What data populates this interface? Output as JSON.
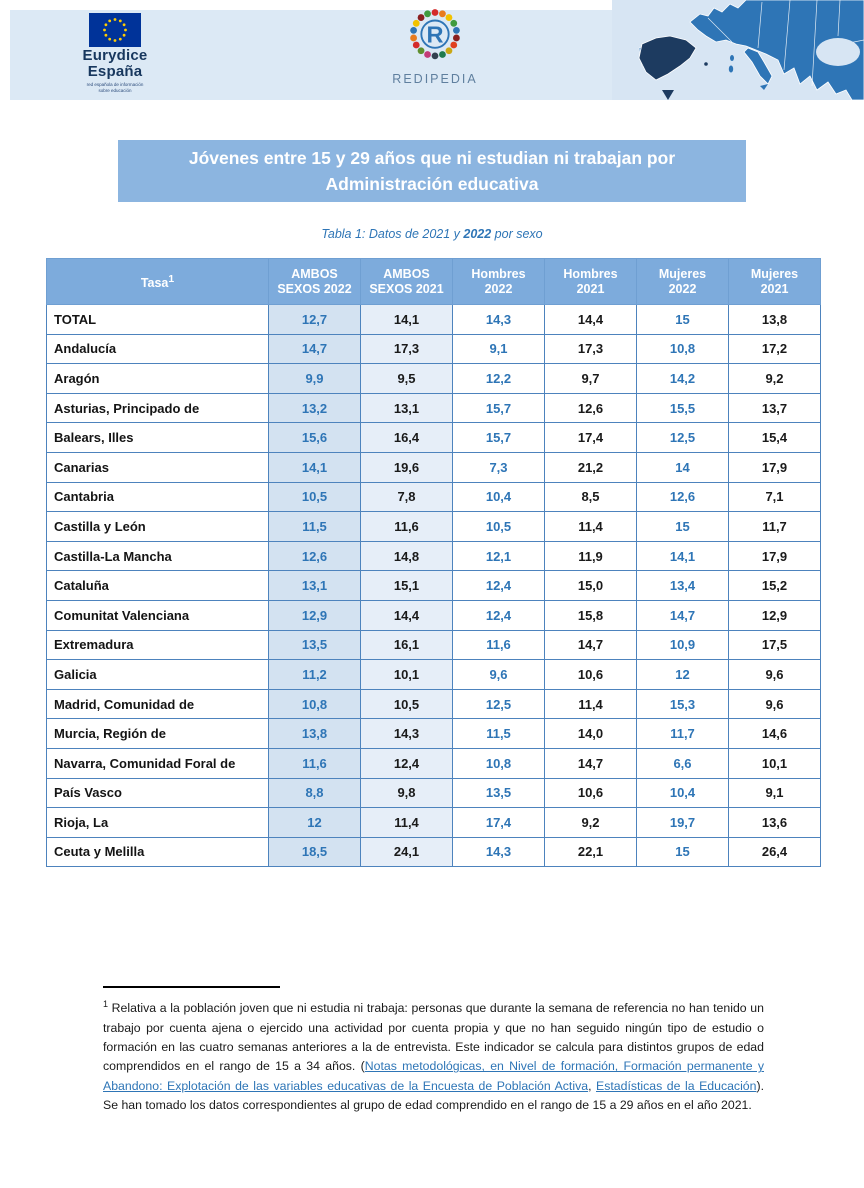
{
  "header": {
    "eurydice": {
      "line1": "Eurydice",
      "line2": "España",
      "sub_line1": "red española de información",
      "sub_line2": "sobre educación"
    },
    "redipedia": {
      "letter": "R",
      "label": "REDIPEDIA"
    }
  },
  "title": {
    "line1": "Jóvenes entre 15 y 29 años que ni estudian ni trabajan por",
    "line2": "Administración educativa"
  },
  "caption": {
    "prefix": "Tabla 1: Datos de 2021 y ",
    "year": "2022",
    "suffix": " por sexo"
  },
  "table": {
    "headers": [
      {
        "line1": "Tasa",
        "sup": "1",
        "line2": ""
      },
      {
        "line1": "AMBOS",
        "line2": "SEXOS 2022"
      },
      {
        "line1": "AMBOS",
        "line2": "SEXOS 2021"
      },
      {
        "line1": "Hombres",
        "line2": "2022"
      },
      {
        "line1": "Hombres",
        "line2": "2021"
      },
      {
        "line1": "Mujeres",
        "line2": "2022"
      },
      {
        "line1": "Mujeres",
        "line2": "2021"
      }
    ],
    "rows": [
      {
        "region": "TOTAL",
        "values": [
          "12,7",
          "14,1",
          "14,3",
          "14,4",
          "15",
          "13,8"
        ]
      },
      {
        "region": "Andalucía",
        "values": [
          "14,7",
          "17,3",
          "9,1",
          "17,3",
          "10,8",
          "17,2"
        ]
      },
      {
        "region": "Aragón",
        "values": [
          "9,9",
          "9,5",
          "12,2",
          "9,7",
          "14,2",
          "9,2"
        ]
      },
      {
        "region": "Asturias, Principado de",
        "values": [
          "13,2",
          "13,1",
          "15,7",
          "12,6",
          "15,5",
          "13,7"
        ]
      },
      {
        "region": "Balears, Illes",
        "values": [
          "15,6",
          "16,4",
          "15,7",
          "17,4",
          "12,5",
          "15,4"
        ]
      },
      {
        "region": "Canarias",
        "values": [
          "14,1",
          "19,6",
          "7,3",
          "21,2",
          "14",
          "17,9"
        ]
      },
      {
        "region": "Cantabria",
        "values": [
          "10,5",
          "7,8",
          "10,4",
          "8,5",
          "12,6",
          "7,1"
        ]
      },
      {
        "region": "Castilla y León",
        "values": [
          "11,5",
          "11,6",
          "10,5",
          "11,4",
          "15",
          "11,7"
        ]
      },
      {
        "region": "Castilla-La Mancha",
        "values": [
          "12,6",
          "14,8",
          "12,1",
          "11,9",
          "14,1",
          "17,9"
        ]
      },
      {
        "region": "Cataluña",
        "values": [
          "13,1",
          "15,1",
          "12,4",
          "15,0",
          "13,4",
          "15,2"
        ]
      },
      {
        "region": "Comunitat Valenciana",
        "values": [
          "12,9",
          "14,4",
          "12,4",
          "15,8",
          "14,7",
          "12,9"
        ]
      },
      {
        "region": "Extremadura",
        "values": [
          "13,5",
          "16,1",
          "11,6",
          "14,7",
          "10,9",
          "17,5"
        ]
      },
      {
        "region": "Galicia",
        "values": [
          "11,2",
          "10,1",
          "9,6",
          "10,6",
          "12",
          "9,6"
        ]
      },
      {
        "region": "Madrid, Comunidad de",
        "values": [
          "10,8",
          "10,5",
          "12,5",
          "11,4",
          "15,3",
          "9,6"
        ]
      },
      {
        "region": "Murcia, Región de",
        "values": [
          "13,8",
          "14,3",
          "11,5",
          "14,0",
          "11,7",
          "14,6"
        ]
      },
      {
        "region": "Navarra, Comunidad Foral de",
        "values": [
          "11,6",
          "12,4",
          "10,8",
          "14,7",
          "6,6",
          "10,1"
        ]
      },
      {
        "region": "País Vasco",
        "values": [
          "8,8",
          "9,8",
          "13,5",
          "10,6",
          "10,4",
          "9,1"
        ]
      },
      {
        "region": "Rioja, La",
        "values": [
          "12",
          "11,4",
          "17,4",
          "9,2",
          "19,7",
          "13,6"
        ]
      },
      {
        "region": "Ceuta y Melilla",
        "values": [
          "18,5",
          "24,1",
          "14,3",
          "22,1",
          "15",
          "26,4"
        ]
      }
    ]
  },
  "footnote": {
    "sup": "1",
    "text1": " Relativa a la población joven que ni estudia ni trabaja: personas que durante la semana de referencia no han tenido un trabajo por cuenta ajena o ejercido una actividad por cuenta propia y que no han seguido ningún tipo de estudio o formación en las cuatro semanas anteriores a la de entrevista. Este indicador se calcula para distintos grupos de edad comprendidos en el rango de 15 a 34 años. (",
    "link1": "Notas metodológicas, en Nivel de formación, Formación permanente y Abandono: Explotación de las variables educativas de la Encuesta de Población Activa",
    "text2": ", ",
    "link2": "Estadísticas de la Educación",
    "text3": "). Se han tomado los datos correspondientes al grupo de edad comprendido en el rango de 15 a 29 años en el año 2021."
  },
  "colors": {
    "accent_blue": "#2e75b6",
    "band_bg": "#dce9f5",
    "title_bg": "#8cb5e0",
    "table_header_bg": "#7dabdc",
    "shade_2022": "#d3e2f1",
    "shade_2021": "#e6eef8",
    "spain_dark": "#1d3b60",
    "eu_flag_blue": "#003399",
    "eu_star_yellow": "#ffcc00"
  }
}
